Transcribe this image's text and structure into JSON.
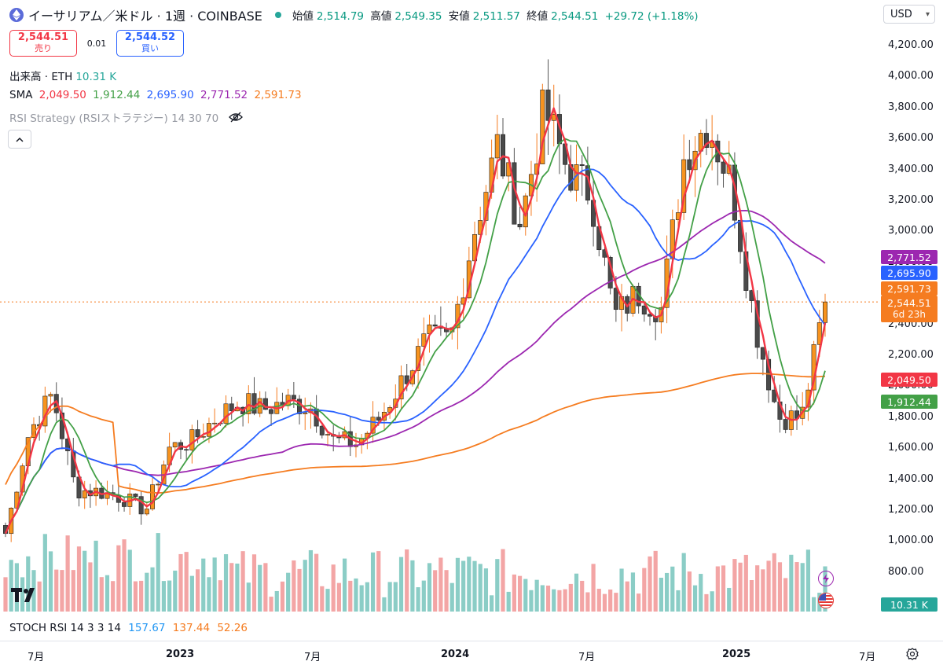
{
  "header": {
    "title": "イーサリアム／米ドル · 1週 · COINBASE",
    "open_label": "始値",
    "open": "2,514.79",
    "high_label": "高値",
    "high": "2,549.35",
    "low_label": "安値",
    "low": "2,511.57",
    "close_label": "終値",
    "close": "2,544.51",
    "change": "+29.72 (+1.18%)"
  },
  "trade": {
    "sell_price": "2,544.51",
    "sell_label": "売り",
    "spread": "0.01",
    "buy_price": "2,544.52",
    "buy_label": "買い"
  },
  "indicators": {
    "volume_label": "出来高 · ETH",
    "volume_value": "10.31 K",
    "sma_label": "SMA",
    "sma_values": [
      "2,049.50",
      "1,912.44",
      "2,695.90",
      "2,771.52",
      "2,591.73"
    ],
    "rsi_label": "RSI Strategy (RSIストラテジー) 14 30 70",
    "collapse_icon": "chevron-up-icon"
  },
  "currency": "USD",
  "stoch": {
    "label": "STOCH RSI 14 3 3 14",
    "v1": "157.67",
    "v2": "137.44",
    "v3": "52.26"
  },
  "y_axis": [
    "4,200.00",
    "4,000.00",
    "3,800.00",
    "3,600.00",
    "3,400.00",
    "3,200.00",
    "3,000.00",
    "2,800.00",
    "2,600.00",
    "2,400.00",
    "2,200.00",
    "2,000.00",
    "1,800.00",
    "1,600.00",
    "1,400.00",
    "1,200.00",
    "1,000.00",
    "800.00"
  ],
  "price_tags": [
    {
      "text": "2,771.52",
      "color": "#9c27b0"
    },
    {
      "text": "2,695.90",
      "color": "#2962ff"
    },
    {
      "text": "2,591.73",
      "color": "#f57c20"
    },
    {
      "text": "2,544.51",
      "sub": "6d 23h",
      "color": "#f57c20"
    },
    {
      "text": "2,049.50",
      "color": "#f23645"
    },
    {
      "text": "1,912.44",
      "color": "#43a047"
    },
    {
      "text": "10.31 K",
      "color": "#26a69a"
    }
  ],
  "x_axis": [
    "7月",
    "2023",
    "7月",
    "2024",
    "7月",
    "2025",
    "7月"
  ],
  "colors": {
    "up": "#f57c20",
    "down": "#555555",
    "sma1": "#f23645",
    "sma2": "#43a047",
    "sma3": "#2962ff",
    "sma4": "#9c27b0",
    "sma5": "#f57c20",
    "vol_up": "#7ec8c0",
    "vol_down": "#f29b9b"
  },
  "chart_data": {
    "type": "candlestick",
    "symbol": "ETH/USD",
    "interval": "1W",
    "ylim": [
      800,
      4200
    ],
    "x": [
      "2022-06",
      "2022-07",
      "2022-08",
      "2022-09",
      "2022-10",
      "2022-11",
      "2022-12",
      "2023-01",
      "2023-02",
      "2023-03",
      "2023-04",
      "2023-05",
      "2023-06",
      "2023-07",
      "2023-08",
      "2023-09",
      "2023-10",
      "2023-11",
      "2023-12",
      "2024-01",
      "2024-02",
      "2024-03",
      "2024-04",
      "2024-05",
      "2024-06",
      "2024-07",
      "2024-08",
      "2024-09",
      "2024-10",
      "2024-11",
      "2024-12",
      "2025-01",
      "2025-02",
      "2025-03",
      "2025-04",
      "2025-05"
    ],
    "close": [
      1050,
      1700,
      1950,
      1330,
      1320,
      1280,
      1200,
      1600,
      1650,
      1800,
      1900,
      1850,
      1900,
      1870,
      1650,
      1630,
      1800,
      2050,
      2300,
      2300,
      3000,
      3550,
      3050,
      3800,
      3400,
      3250,
      2450,
      2600,
      2500,
      3500,
      3700,
      3300,
      2400,
      1800,
      1800,
      2544.51
    ],
    "series": [
      {
        "name": "SMA",
        "last": 2049.5
      },
      {
        "name": "SMA",
        "last": 1912.44
      },
      {
        "name": "SMA",
        "last": 2695.9
      },
      {
        "name": "SMA",
        "last": 2771.52
      },
      {
        "name": "SMA",
        "last": 2591.73
      }
    ],
    "volume_last": "10.31 K"
  }
}
